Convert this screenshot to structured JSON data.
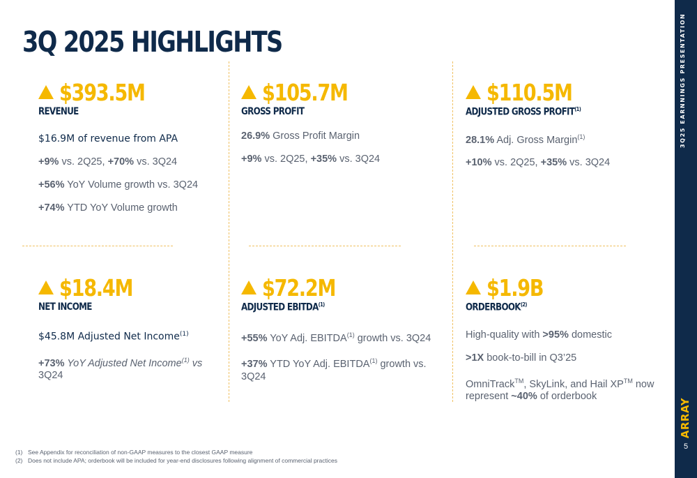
{
  "title": "3Q 2025 HIGHLIGHTS",
  "sidebar": {
    "vertical_text": "3Q25 EARNNINGS PRESENTATION",
    "logo": "ARRAY",
    "page_number": "5"
  },
  "colors": {
    "navy": "#0f2a4a",
    "gold": "#f5b800",
    "gray": "#5a6270"
  },
  "cards": {
    "revenue": {
      "value": "$393.5M",
      "label": "REVENUE",
      "headline": "$16.9M of revenue from APA",
      "line1_a": "+9%",
      "line1_b": " vs. 2Q25, ",
      "line1_c": "+70%",
      "line1_d": " vs. 3Q24",
      "line2_a": "+56%",
      "line2_b": " YoY Volume growth vs. 3Q24",
      "line3_a": "+74%",
      "line3_b": " YTD YoY Volume growth"
    },
    "gross_profit": {
      "value": "$105.7M",
      "label": "GROSS PROFIT",
      "line1_a": "26.9%",
      "line1_b": " Gross Profit Margin",
      "line2_a": "+9%",
      "line2_b": " vs. 2Q25, ",
      "line2_c": "+35%",
      "line2_d": " vs. 3Q24"
    },
    "adj_gross_profit": {
      "value": "$110.5M",
      "label": "ADJUSTED GROSS PROFIT",
      "label_sup": "(1)",
      "line1_a": "28.1%",
      "line1_b": " Adj. Gross Margin",
      "line1_sup": "(1)",
      "line2_a": "+10%",
      "line2_b": " vs. 2Q25, ",
      "line2_c": "+35%",
      "line2_d": " vs. 3Q24"
    },
    "net_income": {
      "value": "$18.4M",
      "label": "NET INCOME",
      "headline": "$45.8M Adjusted Net Income",
      "headline_sup": "(1)",
      "line1_a": "+73%",
      "line1_b": " YoY Adjusted Net Income",
      "line1_sup": "(1)",
      "line1_c": " vs",
      "line1_d": "3Q24"
    },
    "adj_ebitda": {
      "value": "$72.2M",
      "label": "ADJUSTED EBITDA",
      "label_sup": "(1)",
      "line1_a": "+55%",
      "line1_b": " YoY Adj. EBITDA",
      "line1_sup": "(1)",
      "line1_c": " growth vs. 3Q24",
      "line2_a": "+37%",
      "line2_b": " YTD YoY Adj. EBITDA",
      "line2_sup": "(1)",
      "line2_c": " growth vs. 3Q24"
    },
    "orderbook": {
      "value": "$1.9B",
      "label": "ORDERBOOK",
      "label_sup": "(2)",
      "line1_a": "High-quality with ",
      "line1_b": ">95%",
      "line1_c": " domestic",
      "line2_a": ">1X",
      "line2_b": " book-to-bill in Q3’25",
      "line3_a": "OmniTrack",
      "line3_tm1": "TM",
      "line3_b": ", SkyLink, and Hail XP",
      "line3_tm2": "TM",
      "line3_c": " now",
      "line3_d": "represent ",
      "line3_e": "~40%",
      "line3_f": " of orderbook"
    }
  },
  "footnotes": [
    {
      "num": "(1)",
      "text": "See Appendix for reconciliation of non-GAAP measures to the closest GAAP measure"
    },
    {
      "num": "(2)",
      "text": "Does not include APA; orderbook will be included for year-end disclosures following alignment of commercial practices"
    }
  ]
}
